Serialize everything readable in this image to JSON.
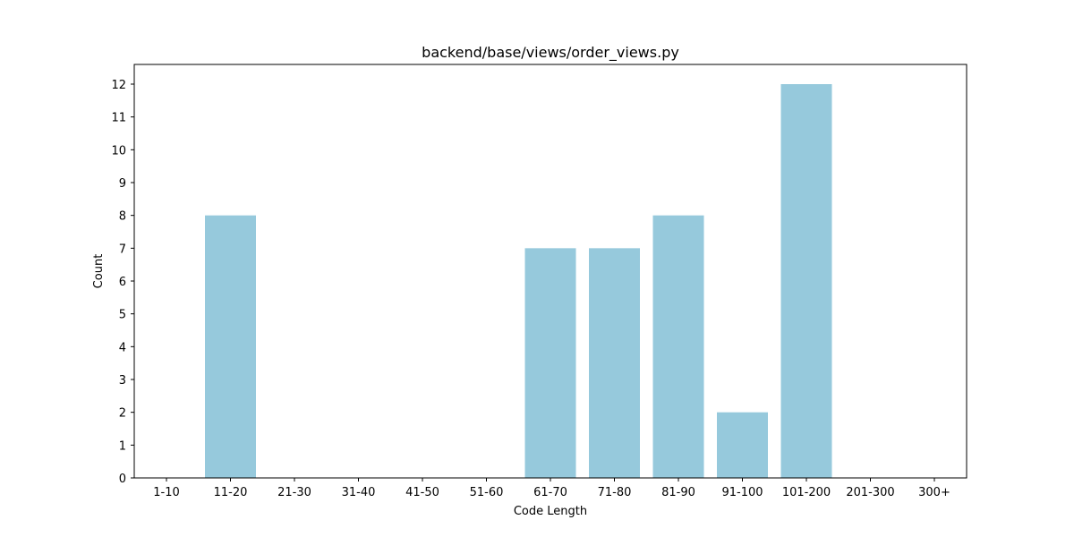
{
  "chart_data": {
    "type": "bar",
    "title": "backend/base/views/order_views.py",
    "xlabel": "Code Length",
    "ylabel": "Count",
    "categories": [
      "1-10",
      "11-20",
      "21-30",
      "31-40",
      "41-50",
      "51-60",
      "61-70",
      "71-80",
      "81-90",
      "91-100",
      "101-200",
      "201-300",
      "300+"
    ],
    "values": [
      0,
      8,
      0,
      0,
      0,
      0,
      7,
      7,
      8,
      2,
      12,
      0,
      0
    ],
    "y_ticks": [
      0,
      1,
      2,
      3,
      4,
      5,
      6,
      7,
      8,
      9,
      10,
      11,
      12
    ],
    "ylim": [
      0,
      12.6
    ],
    "bar_color": "#96c9dc",
    "grid": false,
    "legend": "none"
  }
}
